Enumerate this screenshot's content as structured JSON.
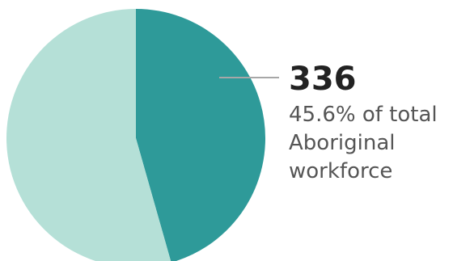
{
  "chart_data": {
    "type": "pie",
    "slices": [
      {
        "value": 45.6,
        "color": "#2e9a99"
      },
      {
        "value": 54.4,
        "color": "#b5e0d7"
      }
    ],
    "callout": {
      "value": "336",
      "lines": [
        "45.6% of total",
        "Aboriginal",
        "workforce"
      ]
    },
    "colors": {
      "line": "#a7a7a7",
      "text_value": "#222222",
      "text_desc": "#555555"
    }
  }
}
